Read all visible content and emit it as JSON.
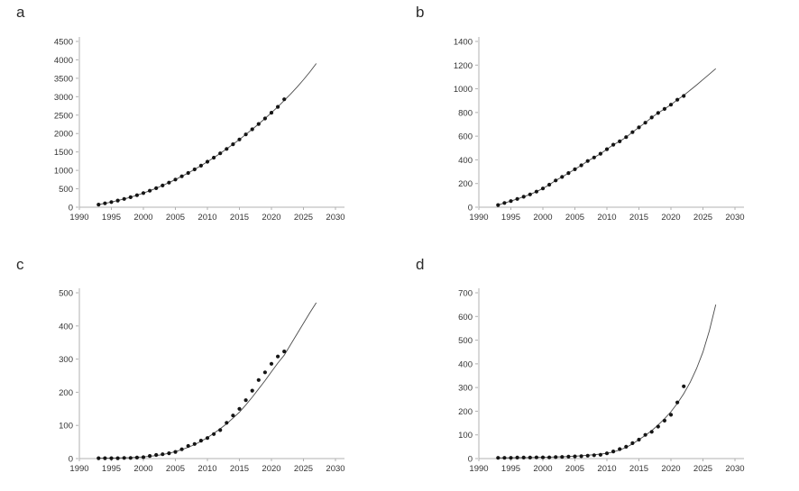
{
  "style": {
    "background": "#ffffff",
    "axis_color": "#b0b0b0",
    "tick_label_color": "#333333",
    "point_color": "#151515",
    "fit_line_color": "#4a4a4a",
    "panel_letter_color": "#2b2b2b",
    "tick_font_size": 9.5
  },
  "chart_data": [
    {
      "panel_label": "a",
      "type": "scatter",
      "title": "",
      "xlabel": "",
      "ylabel": "",
      "xlim": [
        1990,
        2030
      ],
      "ylim": [
        0,
        4500
      ],
      "ytick_step": 500,
      "xticks": [
        1990,
        1995,
        2000,
        2005,
        2010,
        2015,
        2020,
        2025,
        2030
      ],
      "grid": false,
      "legend": false,
      "x": [
        1993,
        1994,
        1995,
        1996,
        1997,
        1998,
        1999,
        2000,
        2001,
        2002,
        2003,
        2004,
        2005,
        2006,
        2007,
        2008,
        2009,
        2010,
        2011,
        2012,
        2013,
        2014,
        2015,
        2016,
        2017,
        2018,
        2019,
        2020,
        2021,
        2022
      ],
      "values": [
        70,
        105,
        140,
        180,
        225,
        272,
        325,
        385,
        448,
        516,
        590,
        667,
        750,
        838,
        930,
        1027,
        1128,
        1235,
        1346,
        1462,
        1583,
        1709,
        1840,
        1975,
        2115,
        2260,
        2410,
        2565,
        2725,
        2930
      ],
      "fit_x_start": 1993,
      "fit_x_end": 2027,
      "fit": [
        70,
        105,
        140,
        180,
        225,
        272,
        325,
        385,
        448,
        516,
        590,
        667,
        750,
        838,
        930,
        1027,
        1128,
        1235,
        1346,
        1462,
        1583,
        1709,
        1840,
        1975,
        2115,
        2260,
        2410,
        2565,
        2725,
        2900,
        3075,
        3260,
        3460,
        3672,
        3900
      ]
    },
    {
      "panel_label": "b",
      "type": "scatter",
      "title": "",
      "xlabel": "",
      "ylabel": "",
      "xlim": [
        1990,
        2030
      ],
      "ylim": [
        0,
        1400
      ],
      "ytick_step": 200,
      "xticks": [
        1990,
        1995,
        2000,
        2005,
        2010,
        2015,
        2020,
        2025,
        2030
      ],
      "grid": false,
      "legend": false,
      "x": [
        1993,
        1994,
        1995,
        1996,
        1997,
        1998,
        1999,
        2000,
        2001,
        2002,
        2003,
        2004,
        2005,
        2006,
        2007,
        2008,
        2009,
        2010,
        2011,
        2012,
        2013,
        2014,
        2015,
        2016,
        2017,
        2018,
        2019,
        2020,
        2021,
        2022
      ],
      "values": [
        18,
        36,
        52,
        70,
        88,
        108,
        132,
        158,
        190,
        226,
        256,
        288,
        320,
        354,
        390,
        420,
        452,
        490,
        528,
        556,
        592,
        634,
        674,
        714,
        758,
        796,
        830,
        866,
        908,
        940
      ],
      "fit_x_start": 1993,
      "fit_x_end": 2027,
      "fit": [
        18,
        36,
        52,
        70,
        88,
        108,
        132,
        158,
        190,
        226,
        256,
        288,
        320,
        354,
        390,
        420,
        452,
        490,
        528,
        556,
        592,
        634,
        674,
        714,
        758,
        796,
        830,
        866,
        908,
        944,
        988,
        1032,
        1078,
        1124,
        1170
      ]
    },
    {
      "panel_label": "c",
      "type": "scatter",
      "title": "",
      "xlabel": "",
      "ylabel": "",
      "xlim": [
        1990,
        2030
      ],
      "ylim": [
        0,
        500
      ],
      "ytick_step": 100,
      "xticks": [
        1990,
        1995,
        2000,
        2005,
        2010,
        2015,
        2020,
        2025,
        2030
      ],
      "grid": false,
      "legend": false,
      "x": [
        1993,
        1994,
        1995,
        1996,
        1997,
        1998,
        1999,
        2000,
        2001,
        2002,
        2003,
        2004,
        2005,
        2006,
        2007,
        2008,
        2009,
        2010,
        2011,
        2012,
        2013,
        2014,
        2015,
        2016,
        2017,
        2018,
        2019,
        2020,
        2021,
        2022
      ],
      "values": [
        1,
        1,
        1,
        1,
        2,
        2,
        3,
        4,
        8,
        11,
        13,
        16,
        20,
        28,
        38,
        44,
        54,
        62,
        74,
        86,
        108,
        130,
        150,
        176,
        205,
        237,
        260,
        286,
        308,
        323
      ],
      "fit_x_start": 1993,
      "fit_x_end": 2027,
      "fit": [
        1,
        1.2,
        1.5,
        2,
        2.5,
        3,
        4,
        5,
        7,
        9,
        12,
        16,
        21,
        27,
        34,
        42,
        52,
        63,
        76,
        90,
        105,
        122,
        140,
        162,
        185,
        210,
        235,
        262,
        288,
        312,
        344,
        376,
        408,
        440,
        470
      ]
    },
    {
      "panel_label": "d",
      "type": "scatter",
      "title": "",
      "xlabel": "",
      "ylabel": "",
      "xlim": [
        1990,
        2030
      ],
      "ylim": [
        0,
        700
      ],
      "ytick_step": 100,
      "xticks": [
        1990,
        1995,
        2000,
        2005,
        2010,
        2015,
        2020,
        2025,
        2030
      ],
      "grid": false,
      "legend": false,
      "x": [
        1993,
        1994,
        1995,
        1996,
        1997,
        1998,
        1999,
        2000,
        2001,
        2002,
        2003,
        2004,
        2005,
        2006,
        2007,
        2008,
        2009,
        2010,
        2011,
        2012,
        2013,
        2014,
        2015,
        2016,
        2017,
        2018,
        2019,
        2020,
        2021,
        2022
      ],
      "values": [
        3,
        3,
        3,
        4,
        4,
        4,
        5,
        5,
        5,
        6,
        7,
        8,
        9,
        10,
        12,
        14,
        16,
        22,
        30,
        40,
        50,
        65,
        80,
        100,
        113,
        135,
        160,
        185,
        237,
        305
      ],
      "fit_x_start": 1993,
      "fit_x_end": 2027,
      "fit": [
        3,
        3.2,
        3.5,
        4,
        4.3,
        4.7,
        5,
        5.5,
        6,
        6.8,
        7.7,
        8.8,
        10,
        12,
        14,
        16.5,
        19,
        22,
        28,
        36,
        47,
        62,
        80,
        98,
        118,
        142,
        168,
        198,
        233,
        274,
        322,
        380,
        450,
        540,
        650
      ]
    }
  ]
}
